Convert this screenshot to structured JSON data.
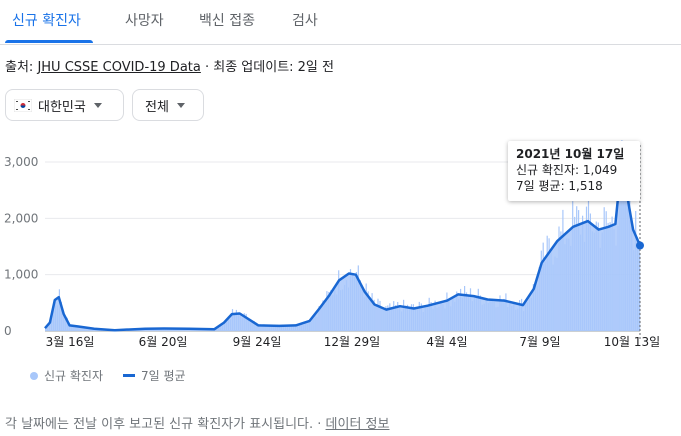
{
  "tabs": [
    {
      "label": "신규 확진자"
    },
    {
      "label": "사망자"
    },
    {
      "label": "백신 접종"
    },
    {
      "label": "검사"
    }
  ],
  "source": {
    "prefix": "출처: ",
    "link": "JHU CSSE COVID-19 Data",
    "suffix": " · 최종 업데이트: 2일 전"
  },
  "filters": {
    "region": "대한민국",
    "scope": "전체"
  },
  "tooltip": {
    "date": "2021년 10월 17일",
    "cases": "신규 확진자: 1,049",
    "avg": "7일 평균: 1,518"
  },
  "legend": {
    "cases": "신규 확진자",
    "avg": "7일 평균"
  },
  "footer": {
    "text": "각 날짜에는 전날 이후 보고된 신규 확진자가 표시됩니다. · ",
    "link": "데이터 정보"
  },
  "colors": {
    "bar": "#a8c7fa",
    "line": "#1967d2",
    "accent": "#1a73e8"
  },
  "chart_data": {
    "type": "area",
    "xlabel": "",
    "ylabel": "",
    "ylim": [
      0,
      3000
    ],
    "grid": true,
    "y_ticks": [
      "0",
      "1,000",
      "2,000",
      "3,000"
    ],
    "x_ticks": [
      "3월 16일",
      "6월 20일",
      "9월 24일",
      "12월 29일",
      "4월 4일",
      "7월 9일",
      "10월 13일"
    ],
    "series": [
      {
        "name": "7일 평균",
        "x": [
          "2020-02-20",
          "2020-02-25",
          "2020-03-01",
          "2020-03-05",
          "2020-03-10",
          "2020-03-16",
          "2020-03-25",
          "2020-04-10",
          "2020-05-01",
          "2020-06-01",
          "2020-06-20",
          "2020-07-15",
          "2020-08-10",
          "2020-08-20",
          "2020-08-28",
          "2020-09-05",
          "2020-09-24",
          "2020-10-15",
          "2020-11-01",
          "2020-11-15",
          "2020-11-25",
          "2020-12-05",
          "2020-12-15",
          "2020-12-25",
          "2021-01-01",
          "2021-01-10",
          "2021-01-20",
          "2021-02-01",
          "2021-02-15",
          "2021-03-01",
          "2021-03-15",
          "2021-04-04",
          "2021-04-15",
          "2021-05-01",
          "2021-05-15",
          "2021-06-01",
          "2021-06-20",
          "2021-07-01",
          "2021-07-09",
          "2021-07-25",
          "2021-08-10",
          "2021-08-25",
          "2021-09-05",
          "2021-09-15",
          "2021-09-22",
          "2021-09-28",
          "2021-10-03",
          "2021-10-10",
          "2021-10-17"
        ],
        "values": [
          50,
          150,
          550,
          600,
          300,
          100,
          80,
          40,
          15,
          40,
          45,
          40,
          30,
          150,
          300,
          310,
          100,
          90,
          100,
          180,
          400,
          630,
          900,
          1020,
          1000,
          700,
          470,
          380,
          440,
          400,
          450,
          540,
          650,
          620,
          560,
          540,
          460,
          750,
          1210,
          1600,
          1850,
          1950,
          1800,
          1850,
          1900,
          2950,
          2500,
          1800,
          1518
        ]
      }
    ]
  }
}
